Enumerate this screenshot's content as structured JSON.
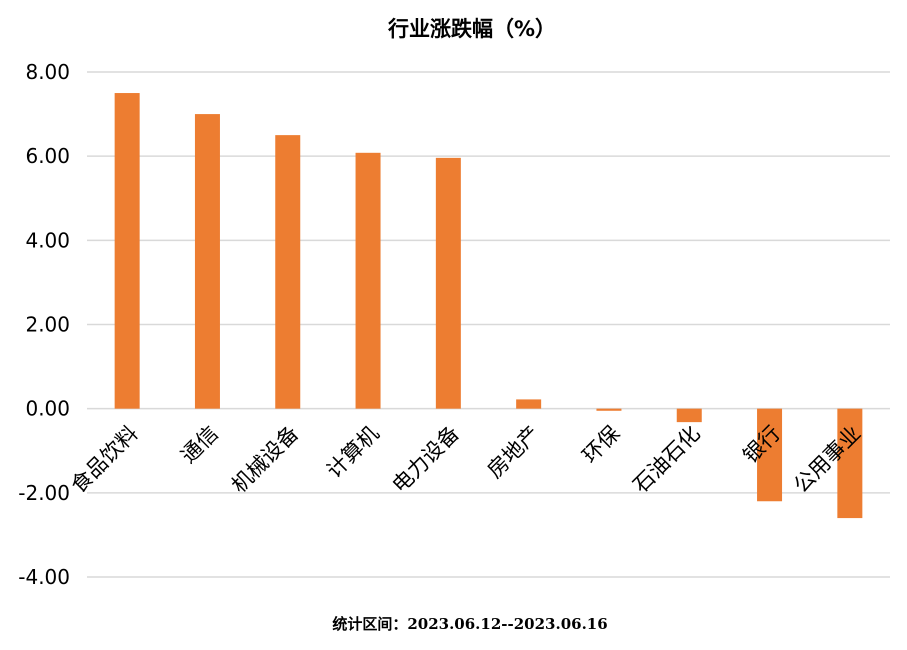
{
  "chart_data": {
    "type": "bar",
    "title": "行业涨跌幅（%）",
    "categories": [
      "食品饮料",
      "通信",
      "机械设备",
      "计算机",
      "电力设备",
      "房地产",
      "环保",
      "石油石化",
      "银行",
      "公用事业"
    ],
    "series": [
      {
        "values": [
          7.5,
          7.0,
          6.5,
          6.08,
          5.96,
          0.22,
          -0.05,
          -0.32,
          -2.2,
          -2.6
        ],
        "color": "#ED7D31"
      }
    ],
    "y_ticks": [
      "8.00",
      "6.00",
      "4.00",
      "2.00",
      "0.00",
      "-2.00",
      "-4.00"
    ],
    "ylim": [
      -4,
      8
    ],
    "grid": true,
    "legend": "none",
    "xlabel": "",
    "ylabel": ""
  },
  "footnote": "统计区间：2023.06.12--2023.06.16"
}
